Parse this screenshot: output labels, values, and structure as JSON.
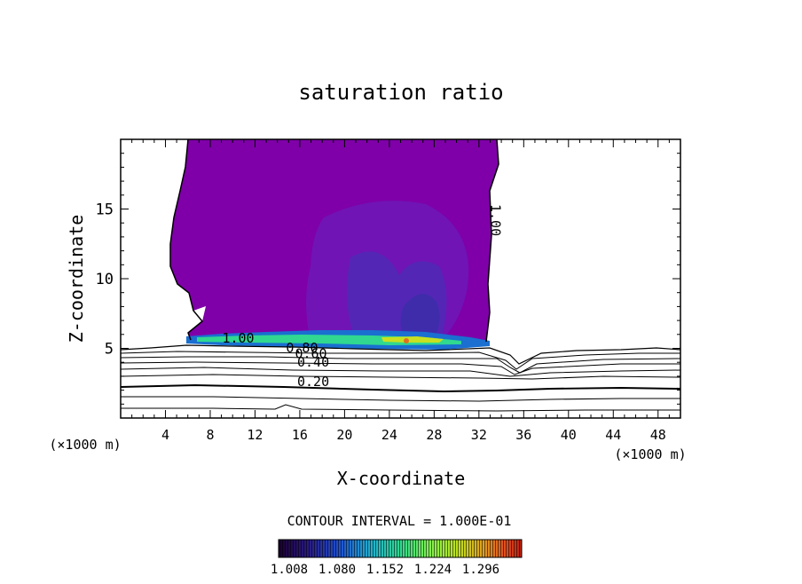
{
  "chart_data": {
    "type": "contour",
    "title": "saturation ratio",
    "xlabel": "X-coordinate",
    "ylabel": "Z-coordinate",
    "x_unit": "(×1000 m)",
    "xlim": [
      0,
      50
    ],
    "ylim": [
      0,
      20
    ],
    "x_ticks": [
      4,
      8,
      12,
      16,
      20,
      24,
      28,
      32,
      36,
      40,
      44,
      48
    ],
    "y_ticks": [
      5,
      10,
      15
    ],
    "grid": false,
    "contour_interval_text": "CONTOUR INTERVAL = 1.000E-01",
    "contour_labels": [
      {
        "text": "1.00",
        "x": 10.5,
        "z": 5.4,
        "rotate": 0
      },
      {
        "text": "0.80",
        "x": 16.2,
        "z": 4.7,
        "rotate": 0
      },
      {
        "text": "0.60",
        "x": 17.0,
        "z": 4.3,
        "rotate": 0
      },
      {
        "text": "0.40",
        "x": 17.2,
        "z": 3.7,
        "rotate": 0
      },
      {
        "text": "0.20",
        "x": 17.2,
        "z": 2.3,
        "rotate": 0
      },
      {
        "text": "1.00",
        "x": 33.1,
        "z": 14.2,
        "rotate": 90
      }
    ],
    "colorbar": {
      "ticks": [
        "1.008",
        "1.080",
        "1.152",
        "1.224",
        "1.296"
      ],
      "colors": [
        "#1a0030",
        "#2a1a80",
        "#2050d0",
        "#20b0d0",
        "#30d890",
        "#80f050",
        "#c0e020",
        "#e0a020",
        "#e05020",
        "#c02010"
      ]
    },
    "colors": {
      "cloud_base": "#7f00a8",
      "cloud_inner": "#6a1cb8",
      "cloud_deep": "#4a2ab8",
      "contour_line": "#000000"
    }
  }
}
